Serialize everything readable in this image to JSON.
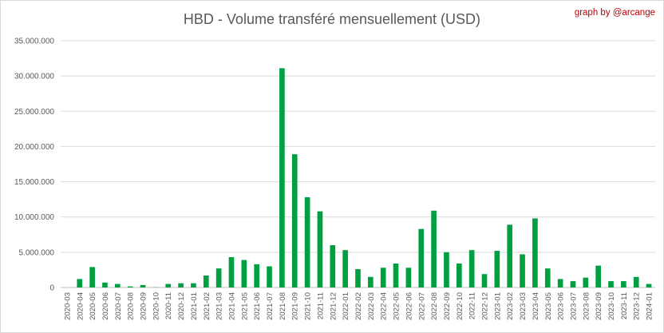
{
  "chart_data": {
    "type": "bar",
    "title": "HBD - Volume transféré mensuellement (USD)",
    "credit": "graph by @arcange",
    "xlabel": "",
    "ylabel": "",
    "ylim": [
      0,
      35000000
    ],
    "yticks": [
      {
        "value": 0,
        "label": "0"
      },
      {
        "value": 5000000,
        "label": "5.000.000"
      },
      {
        "value": 10000000,
        "label": "10.000.000"
      },
      {
        "value": 15000000,
        "label": "15.000.000"
      },
      {
        "value": 20000000,
        "label": "20.000.000"
      },
      {
        "value": 25000000,
        "label": "25.000.000"
      },
      {
        "value": 30000000,
        "label": "30.000.000"
      },
      {
        "value": 35000000,
        "label": "35.000.000"
      }
    ],
    "grid": true,
    "legend": "none",
    "bar_color": "#00a040",
    "categories": [
      "2020-03",
      "2020-04",
      "2020-05",
      "2020-06",
      "2020-07",
      "2020-08",
      "2020-09",
      "2020-10",
      "2020-11",
      "2020-12",
      "2021-01",
      "2021-02",
      "2021-03",
      "2021-04",
      "2021-05",
      "2021-06",
      "2021-07",
      "2021-08",
      "2021-09",
      "2021-10",
      "2021-11",
      "2021-12",
      "2022-01",
      "2022-02",
      "2022-03",
      "2022-04",
      "2022-05",
      "2022-06",
      "2022-07",
      "2022-08",
      "2022-09",
      "2022-10",
      "2022-11",
      "2022-12",
      "2023-01",
      "2023-02",
      "2023-03",
      "2023-04",
      "2023-05",
      "2023-06",
      "2023-07",
      "2023-08",
      "2023-09",
      "2023-10",
      "2023-11",
      "2023-12",
      "2024-01"
    ],
    "values": [
      0,
      1200000,
      2900000,
      700000,
      500000,
      150000,
      350000,
      30000,
      500000,
      600000,
      600000,
      1700000,
      2700000,
      4300000,
      3900000,
      3300000,
      3000000,
      31100000,
      18900000,
      12800000,
      10800000,
      6000000,
      5300000,
      2600000,
      1500000,
      2800000,
      3400000,
      2800000,
      8300000,
      10900000,
      5000000,
      3400000,
      5300000,
      1900000,
      5200000,
      8900000,
      4700000,
      9800000,
      2700000,
      1200000,
      900000,
      1400000,
      3100000,
      900000,
      900000,
      1500000,
      500000
    ]
  }
}
